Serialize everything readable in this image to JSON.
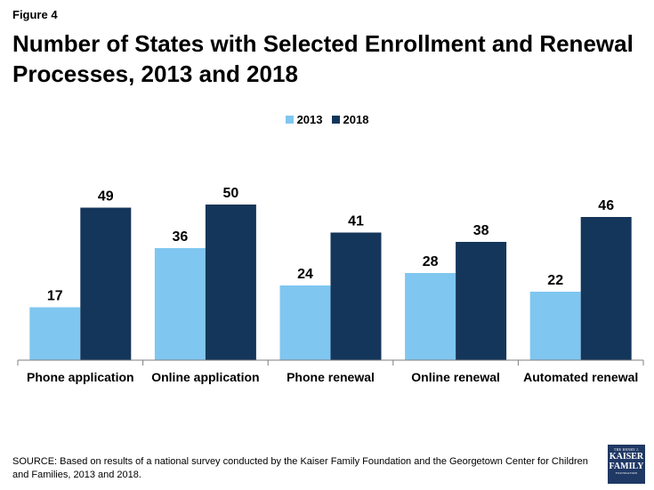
{
  "figure_label": "Figure 4",
  "colors": {
    "series_2013": "#7fc6f0",
    "series_2018": "#14365a",
    "axis": "#7f7f7f"
  },
  "chart_data": {
    "type": "bar",
    "title": "Number of States with Selected Enrollment and Renewal Processes, 2013 and 2018",
    "categories": [
      "Phone application",
      "Online application",
      "Phone renewal",
      "Online renewal",
      "Automated renewal"
    ],
    "series": [
      {
        "name": "2013",
        "values": [
          17,
          36,
          24,
          28,
          22
        ]
      },
      {
        "name": "2018",
        "values": [
          49,
          50,
          41,
          38,
          46
        ]
      }
    ],
    "ylim": [
      0,
      60
    ],
    "grid": false,
    "legend_position": "top-center",
    "data_labels": true
  },
  "source": "SOURCE: Based on results of a national survey conducted by the Kaiser Family Foundation and the Georgetown Center for Children and Families, 2013 and 2018.",
  "logo": {
    "line1": "THE HENRY J.",
    "line2": "KAISER",
    "line3": "FAMILY",
    "line4": "FOUNDATION"
  }
}
